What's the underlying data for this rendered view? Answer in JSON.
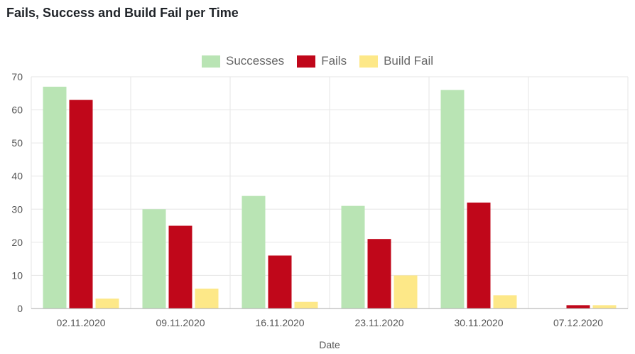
{
  "page": {
    "title": "Fails, Success and Build Fail per Time"
  },
  "chart_data": {
    "type": "bar",
    "title": "Fails, Success and Build Fail per Time",
    "xlabel": "Date",
    "ylabel": "",
    "ylim": [
      0,
      70
    ],
    "yticks": [
      "0",
      "10",
      "20",
      "30",
      "40",
      "50",
      "60",
      "70"
    ],
    "grid": true,
    "legend_position": "top-center",
    "categories": [
      "02.11.2020",
      "09.11.2020",
      "16.11.2020",
      "23.11.2020",
      "30.11.2020",
      "07.12.2020"
    ],
    "series": [
      {
        "name": "Successes",
        "color": "#b9e4b4",
        "values": [
          67,
          30,
          34,
          31,
          66,
          0
        ]
      },
      {
        "name": "Fails",
        "color": "#c0071a",
        "values": [
          63,
          25,
          16,
          21,
          32,
          1
        ]
      },
      {
        "name": "Build Fail",
        "color": "#fde888",
        "values": [
          3,
          6,
          2,
          10,
          4,
          1
        ]
      }
    ]
  }
}
